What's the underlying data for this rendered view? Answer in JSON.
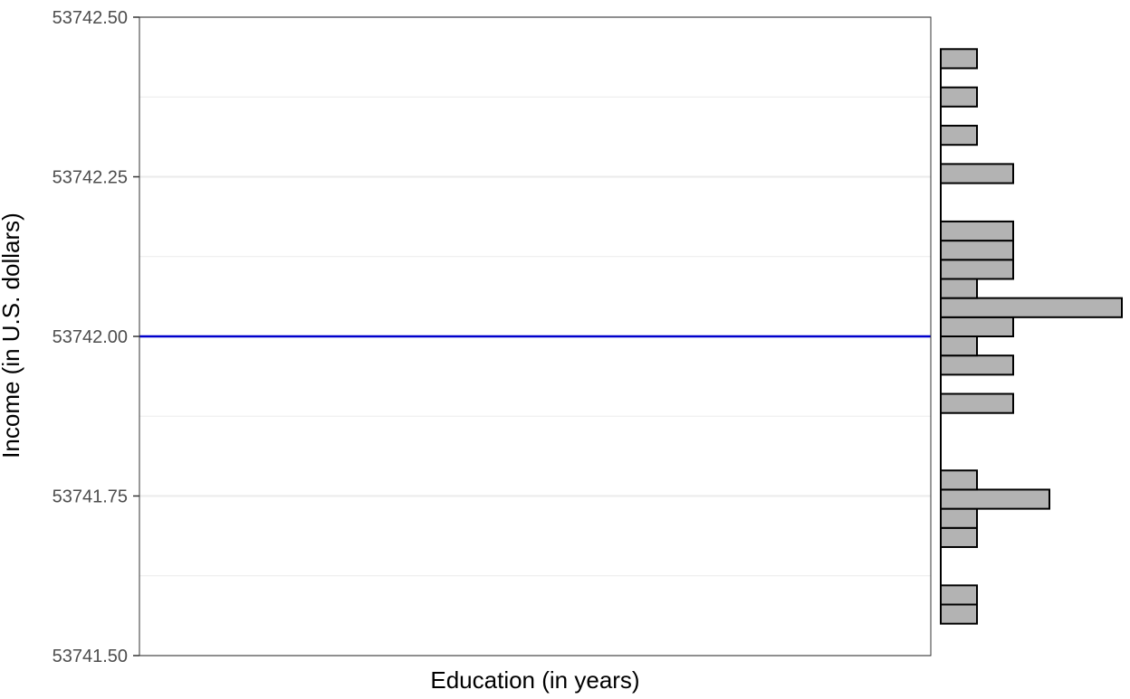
{
  "chart_data": {
    "type": "scatter",
    "title": "",
    "xlabel": "Education (in years)",
    "ylabel": "Income (in U.S. dollars)",
    "ylim": [
      53741.5,
      53742.5
    ],
    "y_ticks": [
      "53741.50",
      "53741.75",
      "53742.00",
      "53742.25",
      "53742.50"
    ],
    "y_tick_values": [
      53741.5,
      53741.75,
      53742.0,
      53742.25,
      53742.5
    ],
    "x_ticks": [],
    "grid": true,
    "reference_line": {
      "y": 53742.0,
      "color": "#0000cc"
    },
    "marginal_histogram": {
      "orientation": "horizontal",
      "bin_width": 0.03,
      "bar_fill": "#b3b3b3",
      "bar_stroke": "#000000",
      "bins": [
        {
          "start": 53741.55,
          "end": 53741.58,
          "count": 1
        },
        {
          "start": 53741.58,
          "end": 53741.61,
          "count": 1
        },
        {
          "start": 53741.61,
          "end": 53741.64,
          "count": 0
        },
        {
          "start": 53741.64,
          "end": 53741.67,
          "count": 0
        },
        {
          "start": 53741.67,
          "end": 53741.7,
          "count": 1
        },
        {
          "start": 53741.7,
          "end": 53741.73,
          "count": 1
        },
        {
          "start": 53741.73,
          "end": 53741.76,
          "count": 3
        },
        {
          "start": 53741.76,
          "end": 53741.79,
          "count": 1
        },
        {
          "start": 53741.79,
          "end": 53741.82,
          "count": 0
        },
        {
          "start": 53741.82,
          "end": 53741.85,
          "count": 0
        },
        {
          "start": 53741.85,
          "end": 53741.88,
          "count": 0
        },
        {
          "start": 53741.88,
          "end": 53741.91,
          "count": 2
        },
        {
          "start": 53741.91,
          "end": 53741.94,
          "count": 0
        },
        {
          "start": 53741.94,
          "end": 53741.97,
          "count": 2
        },
        {
          "start": 53741.97,
          "end": 53742.0,
          "count": 1
        },
        {
          "start": 53742.0,
          "end": 53742.03,
          "count": 2
        },
        {
          "start": 53742.03,
          "end": 53742.06,
          "count": 5
        },
        {
          "start": 53742.06,
          "end": 53742.09,
          "count": 1
        },
        {
          "start": 53742.09,
          "end": 53742.12,
          "count": 2
        },
        {
          "start": 53742.12,
          "end": 53742.15,
          "count": 2
        },
        {
          "start": 53742.15,
          "end": 53742.18,
          "count": 2
        },
        {
          "start": 53742.18,
          "end": 53742.21,
          "count": 0
        },
        {
          "start": 53742.21,
          "end": 53742.24,
          "count": 0
        },
        {
          "start": 53742.24,
          "end": 53742.27,
          "count": 2
        },
        {
          "start": 53742.27,
          "end": 53742.3,
          "count": 0
        },
        {
          "start": 53742.3,
          "end": 53742.33,
          "count": 1
        },
        {
          "start": 53742.33,
          "end": 53742.36,
          "count": 0
        },
        {
          "start": 53742.36,
          "end": 53742.39,
          "count": 1
        },
        {
          "start": 53742.39,
          "end": 53742.42,
          "count": 0
        },
        {
          "start": 53742.42,
          "end": 53742.45,
          "count": 1
        }
      ]
    }
  }
}
